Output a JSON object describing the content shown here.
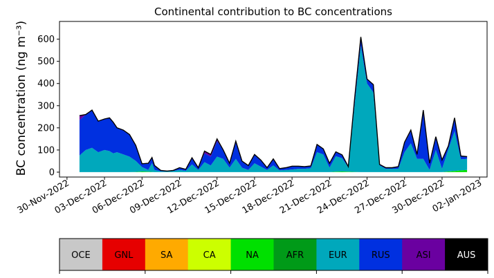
{
  "chart_data": {
    "type": "area",
    "title": "Continental contribution to BC concentrations",
    "xlabel": "",
    "ylabel": "BC concentration (ng m⁻³)",
    "ylim": [
      -22,
      680
    ],
    "xlim": [
      -0.6,
      33.6
    ],
    "x_tick_values": [
      0,
      3,
      6,
      9,
      12,
      15,
      18,
      21,
      24,
      27,
      30,
      33
    ],
    "x_tick_labels": [
      "30-Nov-2022",
      "03-Dec-2022",
      "06-Dec-2022",
      "09-Dec-2022",
      "12-Dec-2022",
      "15-Dec-2022",
      "18-Dec-2022",
      "21-Dec-2022",
      "24-Dec-2022",
      "27-Dec-2022",
      "30-Dec-2022",
      "02-Jan-2023"
    ],
    "y_ticks": [
      0,
      100,
      200,
      300,
      400,
      500,
      600
    ],
    "legend_placement": "bottom",
    "series_order": [
      "OCE",
      "GNL",
      "SA",
      "CA",
      "NA",
      "AFR",
      "EUR",
      "RUS",
      "ASI",
      "AUS"
    ],
    "colors": {
      "OCE": "#c8c8c8",
      "GNL": "#e60000",
      "SA": "#ffaa00",
      "CA": "#ccff00",
      "NA": "#00e000",
      "AFR": "#009a18",
      "EUR": "#00a8bc",
      "RUS": "#0030e0",
      "ASI": "#6a00a0",
      "AUS": "#000000"
    },
    "legend_text_colors": {
      "OCE": "#000000",
      "GNL": "#000000",
      "SA": "#000000",
      "CA": "#000000",
      "NA": "#000000",
      "AFR": "#000000",
      "EUR": "#000000",
      "RUS": "#000000",
      "ASI": "#000000",
      "AUS": "#ffffff"
    },
    "x": [
      1,
      1.5,
      2,
      2.5,
      3,
      3.4,
      3.7,
      4,
      4.5,
      5,
      5.5,
      6,
      6.5,
      6.8,
      7,
      7.5,
      8,
      8.5,
      9,
      9.5,
      10,
      10.5,
      11,
      11.5,
      12,
      12.5,
      13,
      13.5,
      14,
      14.5,
      15,
      15.5,
      16,
      16.5,
      17,
      17.5,
      18,
      18.5,
      19,
      19.5,
      20,
      20.5,
      21,
      21.5,
      22,
      22.5,
      23,
      23.5,
      24,
      24.5,
      25,
      25.5,
      26,
      26.5,
      27,
      27.5,
      28,
      28.5,
      29,
      29.5,
      30,
      30.5,
      31,
      31.5,
      32
    ],
    "series": [
      {
        "name": "NA",
        "values": [
          0,
          0,
          0,
          0,
          0,
          0,
          0,
          0,
          0,
          0,
          1,
          3,
          2,
          1,
          0,
          0,
          0,
          0,
          0,
          0,
          0,
          0,
          0,
          0,
          0,
          0,
          0,
          0,
          0,
          0,
          0,
          0,
          0,
          0,
          0,
          0,
          0,
          0,
          0,
          0,
          0,
          0,
          0,
          2,
          3,
          2,
          1,
          0,
          0,
          0,
          0,
          0,
          0,
          0,
          0,
          0,
          0,
          0,
          0,
          0,
          0,
          3,
          5,
          8,
          10
        ]
      },
      {
        "name": "EUR",
        "values": [
          75,
          100,
          110,
          90,
          100,
          95,
          85,
          90,
          80,
          70,
          50,
          20,
          8,
          40,
          10,
          4,
          3,
          5,
          10,
          6,
          35,
          10,
          45,
          30,
          70,
          60,
          20,
          60,
          20,
          10,
          40,
          25,
          10,
          30,
          8,
          10,
          12,
          15,
          15,
          18,
          90,
          80,
          20,
          70,
          60,
          20,
          300,
          570,
          400,
          360,
          30,
          15,
          15,
          15,
          90,
          130,
          60,
          60,
          10,
          100,
          15,
          100,
          180,
          50,
          50
        ]
      },
      {
        "name": "RUS",
        "values": [
          160,
          160,
          170,
          140,
          140,
          150,
          140,
          110,
          110,
          100,
          70,
          15,
          30,
          25,
          20,
          4,
          2,
          3,
          10,
          7,
          30,
          10,
          40,
          40,
          70,
          40,
          20,
          80,
          30,
          20,
          40,
          30,
          10,
          30,
          8,
          10,
          15,
          12,
          10,
          10,
          35,
          25,
          20,
          20,
          15,
          3,
          30,
          40,
          20,
          35,
          5,
          5,
          5,
          10,
          40,
          55,
          20,
          220,
          30,
          60,
          40,
          15,
          60,
          15,
          10
        ]
      },
      {
        "name": "ASI",
        "values": [
          20,
          0,
          0,
          0,
          0,
          0,
          0,
          0,
          0,
          0,
          0,
          0,
          0,
          0,
          0,
          0,
          0,
          0,
          0,
          0,
          0,
          0,
          10,
          10,
          10,
          0,
          0,
          0,
          0,
          0,
          0,
          0,
          0,
          0,
          0,
          0,
          0,
          0,
          0,
          0,
          0,
          0,
          0,
          0,
          0,
          0,
          0,
          0,
          0,
          0,
          0,
          0,
          0,
          0,
          5,
          5,
          0,
          0,
          0,
          0,
          0,
          0,
          0,
          0,
          0
        ]
      }
    ],
    "total": [
      255,
      260,
      280,
      230,
      240,
      245,
      225,
      200,
      190,
      170,
      121,
      38,
      40,
      66,
      30,
      8,
      5,
      8,
      20,
      13,
      65,
      20,
      95,
      80,
      150,
      100,
      40,
      140,
      50,
      30,
      80,
      55,
      20,
      60,
      16,
      20,
      27,
      27,
      25,
      28,
      125,
      105,
      40,
      92,
      78,
      25,
      331,
      610,
      420,
      395,
      35,
      20,
      20,
      25,
      135,
      190,
      80,
      280,
      40,
      160,
      55,
      118,
      245,
      73,
      70
    ]
  },
  "legend": {
    "items": [
      {
        "label": "OCE",
        "key": "OCE"
      },
      {
        "label": "GNL",
        "key": "GNL"
      },
      {
        "label": "SA",
        "key": "SA"
      },
      {
        "label": "CA",
        "key": "CA"
      },
      {
        "label": "NA",
        "key": "NA"
      },
      {
        "label": "AFR",
        "key": "AFR"
      },
      {
        "label": "EUR",
        "key": "EUR"
      },
      {
        "label": "RUS",
        "key": "RUS"
      },
      {
        "label": "ASI",
        "key": "ASI"
      },
      {
        "label": "AUS",
        "key": "AUS"
      }
    ]
  }
}
